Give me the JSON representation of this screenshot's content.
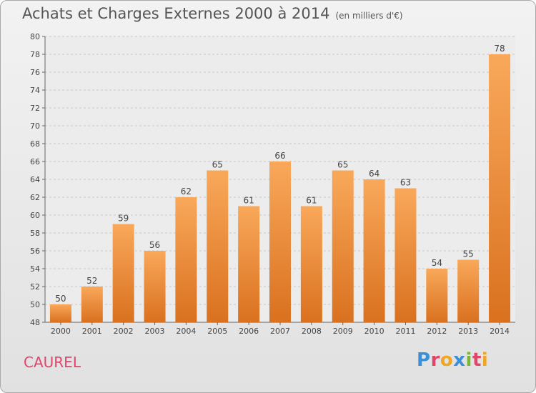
{
  "title": "Achats et Charges Externes 2000 à 2014",
  "subtitle": "(en milliers d'€)",
  "place": "CAUREL",
  "logo": "Proxiti",
  "colors": {
    "bar_light": "#f9a85a",
    "bar_dark": "#d9711f",
    "place": "#e0456a"
  },
  "chart_data": {
    "type": "bar",
    "title": "Achats et Charges Externes 2000 à 2014",
    "subtitle": "(en milliers d'€)",
    "categories": [
      "2000",
      "2001",
      "2002",
      "2003",
      "2004",
      "2005",
      "2006",
      "2007",
      "2008",
      "2009",
      "2010",
      "2011",
      "2012",
      "2013",
      "2014"
    ],
    "values": [
      50,
      52,
      59,
      56,
      62,
      65,
      61,
      66,
      61,
      65,
      64,
      63,
      54,
      55,
      78
    ],
    "ylim": [
      48,
      80
    ],
    "yticks": [
      48,
      50,
      52,
      54,
      56,
      58,
      60,
      62,
      64,
      66,
      68,
      70,
      72,
      74,
      76,
      78,
      80
    ],
    "grid": true,
    "legend": "none"
  }
}
